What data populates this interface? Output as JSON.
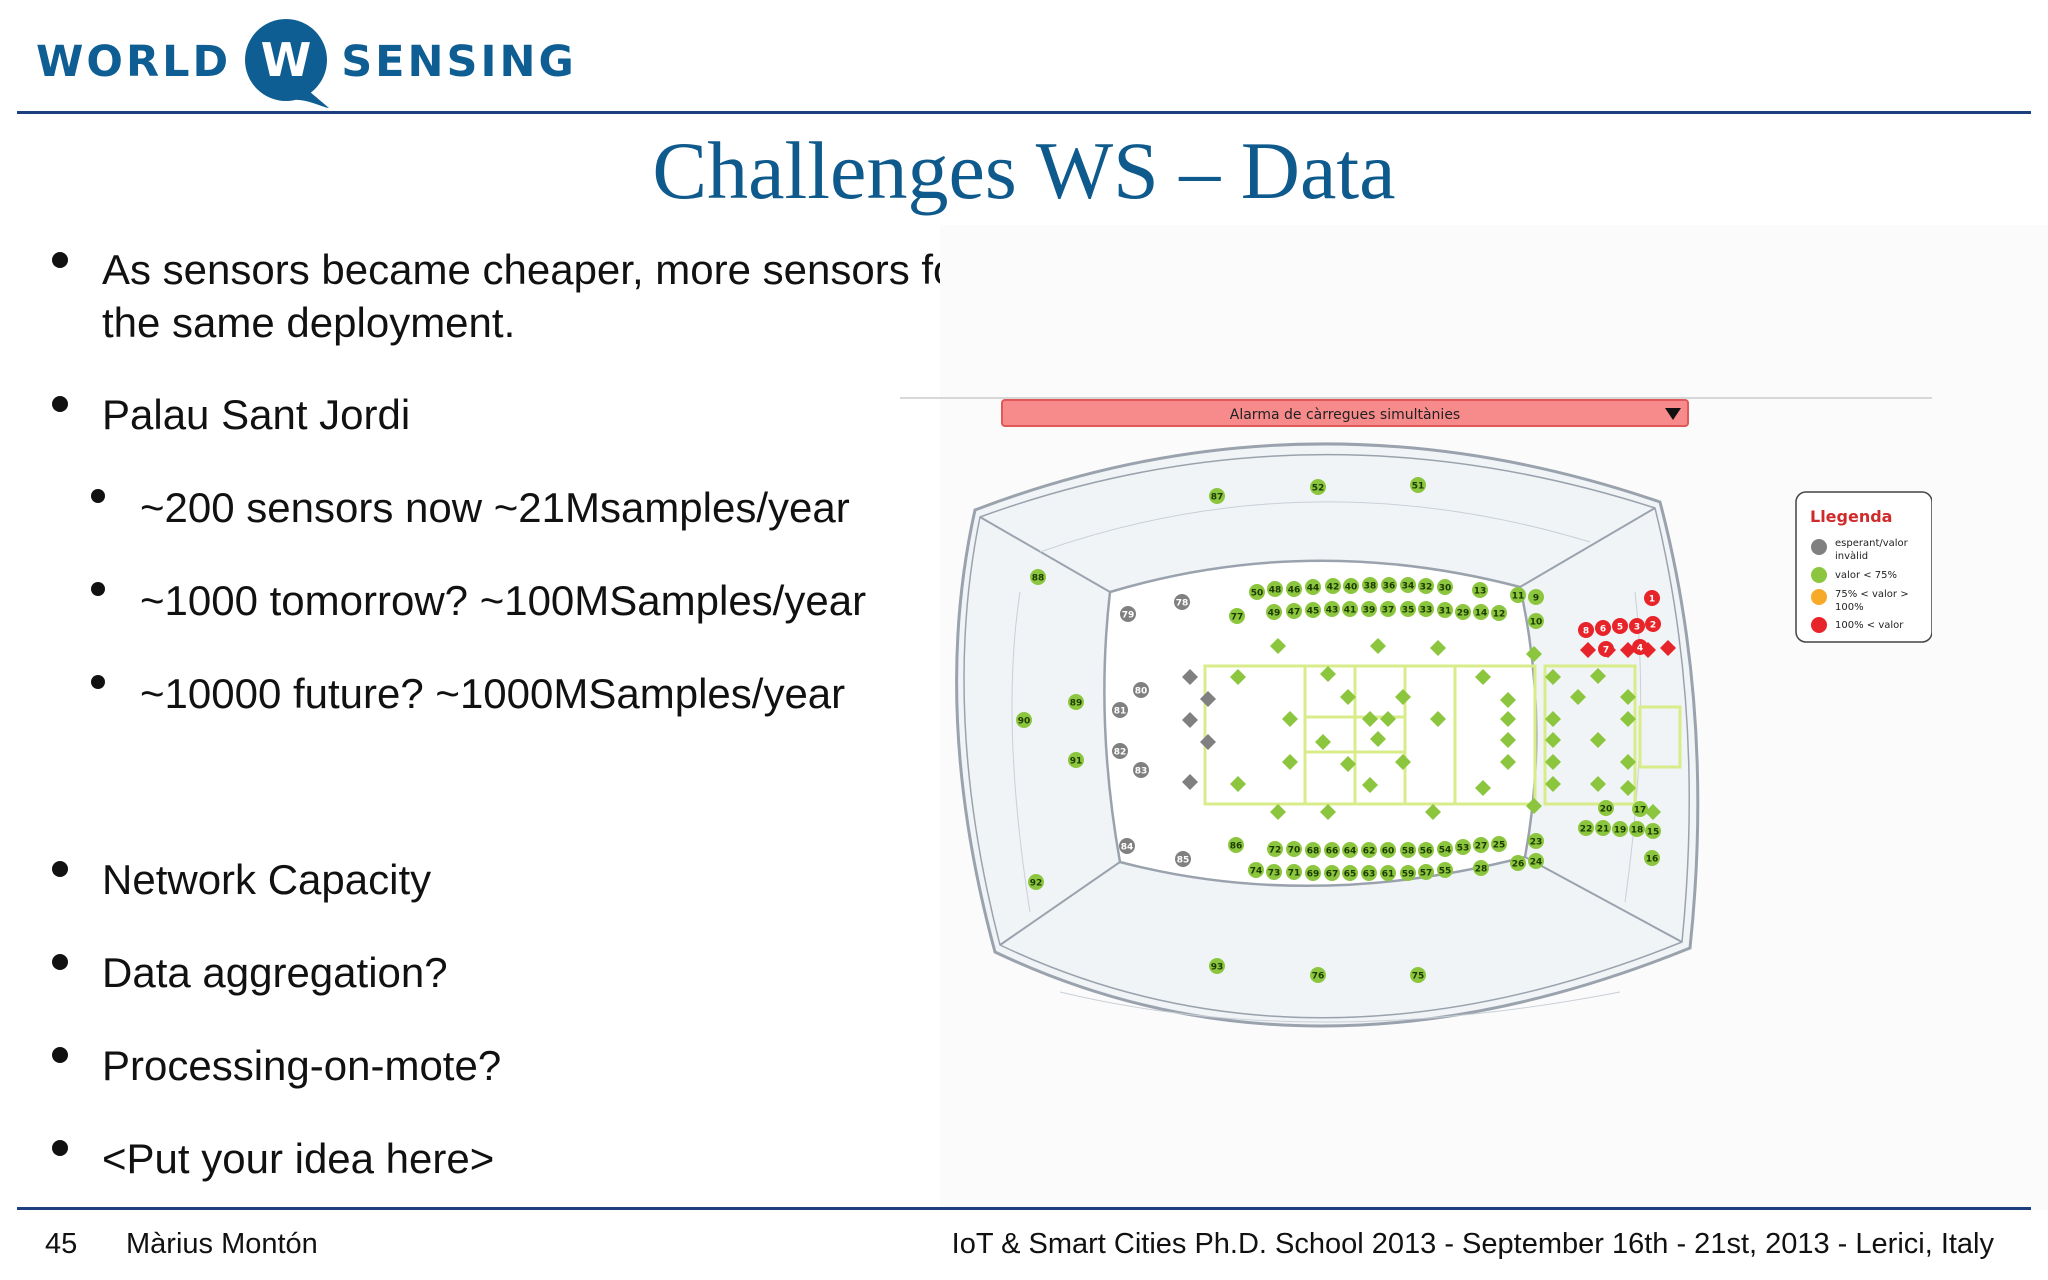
{
  "logo": {
    "left": "WORLD",
    "mid": "W",
    "right": "SENSING"
  },
  "title": "Challenges WS – Data",
  "bullets": {
    "b1_line1": "As sensors became cheaper, more sensors for",
    "b1_line2": "the same deployment.",
    "b2": "Palau Sant Jordi",
    "s1": "~200 sensors now ~21Msamples/year",
    "s2": "~1000 tomorrow? ~100MSamples/year",
    "s3": "~10000 future? ~1000MSamples/year",
    "b3": "Network Capacity",
    "b4": "Data aggregation?",
    "b5": "Processing-on-mote?",
    "b6": "<Put your idea here>"
  },
  "map": {
    "alarm_label": "Alarma de càrregues simultànies",
    "legend": {
      "title": "Llegenda",
      "items": [
        {
          "label1": "esperant/valor",
          "label2": "invàlid",
          "color": "#808080"
        },
        {
          "label1": "valor < 75%",
          "label2": "",
          "color": "#8cc63e"
        },
        {
          "label1": "75% < valor >",
          "label2": "100%",
          "color": "#f7a928"
        },
        {
          "label1": "100% < valor",
          "label2": "",
          "color": "#e8242b"
        }
      ]
    },
    "colors": {
      "green": "#8cc63e",
      "grey": "#808080",
      "red": "#e8242b",
      "alarm": "#f78a8a"
    },
    "sensors": {
      "green": [
        "87",
        "52",
        "51",
        "88",
        "89",
        "90",
        "91",
        "92",
        "93",
        "76",
        "75",
        "50",
        "48",
        "46",
        "44",
        "42",
        "40",
        "38",
        "36",
        "34",
        "32",
        "30",
        "13",
        "11",
        "9",
        "77",
        "49",
        "47",
        "45",
        "43",
        "41",
        "39",
        "37",
        "35",
        "33",
        "31",
        "29",
        "14",
        "12",
        "10",
        "20",
        "17",
        "22",
        "21",
        "19",
        "18",
        "15",
        "16",
        "86",
        "72",
        "70",
        "68",
        "66",
        "64",
        "62",
        "60",
        "58",
        "56",
        "54",
        "53",
        "27",
        "25",
        "23",
        "74",
        "73",
        "71",
        "69",
        "67",
        "65",
        "63",
        "61",
        "59",
        "57",
        "55",
        "28",
        "26",
        "24"
      ],
      "grey": [
        "79",
        "78",
        "80",
        "81",
        "82",
        "83",
        "84",
        "85"
      ],
      "red": [
        "1",
        "8",
        "6",
        "5",
        "3",
        "2",
        "7",
        "4"
      ]
    }
  },
  "footer": {
    "page": "45",
    "author": "Màrius Montón",
    "event": "IoT & Smart Cities Ph.D. School 2013 - September 16th - 21st, 2013 - Lerici, Italy"
  }
}
